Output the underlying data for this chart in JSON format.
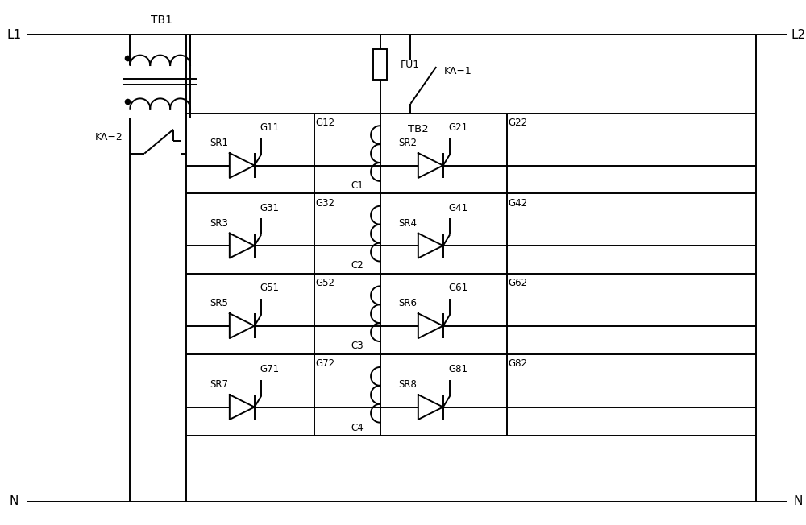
{
  "fig_width": 10.0,
  "fig_height": 6.52,
  "dpi": 100,
  "labels": {
    "L1": "L1",
    "L2": "L2",
    "N": "N",
    "TB1": "TB1",
    "TB2": "TB2",
    "FU1": "FU1",
    "KA1": "KA−1",
    "KA2": "KA−2",
    "C": [
      "C1",
      "C2",
      "C3",
      "C4"
    ],
    "SR_L": [
      "SR1",
      "SR3",
      "SR5",
      "SR7"
    ],
    "SR_R": [
      "SR2",
      "SR4",
      "SR6",
      "SR8"
    ],
    "G_L1": [
      "G11",
      "G31",
      "G51",
      "G71"
    ],
    "G_L2": [
      "G12",
      "G32",
      "G52",
      "G72"
    ],
    "G_R1": [
      "G21",
      "G41",
      "G61",
      "G81"
    ],
    "G_R2": [
      "G22",
      "G42",
      "G62",
      "G82"
    ]
  }
}
